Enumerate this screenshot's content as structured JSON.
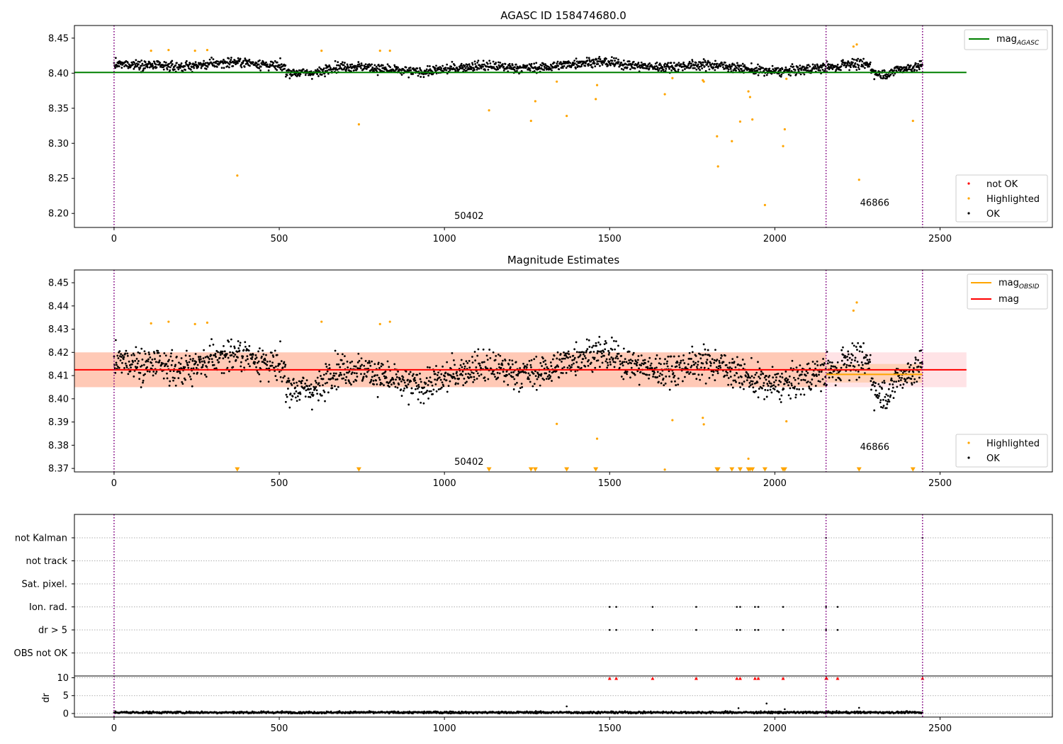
{
  "chart_data": [
    {
      "type": "scatter",
      "title": "AGASC ID 158474680.0",
      "xlim": [
        -120,
        2840
      ],
      "ylim": [
        8.18,
        8.468
      ],
      "xticks": [
        0,
        500,
        1000,
        1500,
        2000,
        2500
      ],
      "yticks": [
        8.2,
        8.25,
        8.3,
        8.35,
        8.4,
        8.45
      ],
      "ytick_labels": [
        "8.20",
        "8.25",
        "8.30",
        "8.35",
        "8.40",
        "8.45"
      ],
      "vlines": [
        0,
        2155,
        2447
      ],
      "annotations": [
        {
          "text": "50402",
          "x": 1030,
          "y": 8.192
        },
        {
          "text": "46866",
          "x": 2258,
          "y": 8.211
        }
      ],
      "line_legend": [
        {
          "label": "mag",
          "sub": "AGASC",
          "color": "#008000"
        }
      ],
      "marker_legend": [
        {
          "label": "not OK",
          "color": "#ff0000"
        },
        {
          "label": "Highlighted",
          "color": "#ffa500"
        },
        {
          "label": "OK",
          "color": "#000000"
        }
      ],
      "series": [
        {
          "name": "mag_AGASC",
          "type": "line",
          "color": "#008000",
          "x": [
            -120,
            2580
          ],
          "y": [
            8.401,
            8.401
          ]
        },
        {
          "name": "Highlighted",
          "color": "#ffa500",
          "points": [
            [
              112,
              8.432
            ],
            [
              165,
              8.433
            ],
            [
              245,
              8.432
            ],
            [
              282,
              8.433
            ],
            [
              373,
              8.254
            ],
            [
              628,
              8.432
            ],
            [
              741,
              8.327
            ],
            [
              805,
              8.432
            ],
            [
              835,
              8.432
            ],
            [
              1135,
              8.347
            ],
            [
              1262,
              8.332
            ],
            [
              1275,
              8.36
            ],
            [
              1340,
              8.388
            ],
            [
              1370,
              8.339
            ],
            [
              1458,
              8.363
            ],
            [
              1462,
              8.383
            ],
            [
              1667,
              8.37
            ],
            [
              1690,
              8.393
            ],
            [
              1782,
              8.39
            ],
            [
              1785,
              8.388
            ],
            [
              1825,
              8.31
            ],
            [
              1828,
              8.267
            ],
            [
              1870,
              8.303
            ],
            [
              1895,
              8.331
            ],
            [
              1920,
              8.374
            ],
            [
              1925,
              8.366
            ],
            [
              1932,
              8.334
            ],
            [
              1970,
              8.212
            ],
            [
              2025,
              8.296
            ],
            [
              2030,
              8.32
            ],
            [
              2035,
              8.392
            ],
            [
              2238,
              8.438
            ],
            [
              2248,
              8.441
            ],
            [
              2255,
              8.248
            ],
            [
              2418,
              8.332
            ]
          ]
        }
      ]
    },
    {
      "type": "scatter",
      "title": "Magnitude Estimates",
      "xlim": [
        -120,
        2840
      ],
      "ylim": [
        8.3685,
        8.4555
      ],
      "xticks": [
        0,
        500,
        1000,
        1500,
        2000,
        2500
      ],
      "yticks": [
        8.37,
        8.38,
        8.39,
        8.4,
        8.41,
        8.42,
        8.43,
        8.44,
        8.45
      ],
      "ytick_labels": [
        "8.37",
        "8.38",
        "8.39",
        "8.40",
        "8.41",
        "8.42",
        "8.43",
        "8.44",
        "8.45"
      ],
      "vlines": [
        0,
        2155,
        2447
      ],
      "annotations": [
        {
          "text": "50402",
          "x": 1030,
          "y": 8.3715
        },
        {
          "text": "46866",
          "x": 2258,
          "y": 8.378
        }
      ],
      "line_legend": [
        {
          "label": "mag",
          "sub": "OBSID",
          "color": "#ffa500"
        },
        {
          "label": "mag",
          "sub": "",
          "color": "#ff0000"
        }
      ],
      "marker_legend": [
        {
          "label": "Highlighted",
          "color": "#ffa500"
        },
        {
          "label": "OK",
          "color": "#000000"
        }
      ],
      "bands": [
        {
          "x": [
            -120,
            2580
          ],
          "y": [
            8.405,
            8.42
          ],
          "color": "#ffc0c8",
          "opacity": 0.45
        },
        {
          "x": [
            -120,
            2155
          ],
          "y": [
            8.405,
            8.42
          ],
          "color": "#ffa06a",
          "opacity": 0.38
        },
        {
          "x": [
            2155,
            2447
          ],
          "y": [
            8.407,
            8.415
          ],
          "color": "#ffb060",
          "opacity": 0.35
        }
      ],
      "series": [
        {
          "name": "mag_OBSID",
          "type": "line",
          "color": "#ffa500",
          "x": [
            2155,
            2447
          ],
          "y": [
            8.4105,
            8.4105
          ]
        },
        {
          "name": "mag",
          "type": "line",
          "color": "#ff0000",
          "x": [
            -120,
            2580
          ],
          "y": [
            8.4125,
            8.4125
          ]
        },
        {
          "name": "Highlighted",
          "color": "#ffa500",
          "points": [
            [
              112,
              8.4325
            ],
            [
              165,
              8.4332
            ],
            [
              245,
              8.4322
            ],
            [
              282,
              8.4328
            ],
            [
              628,
              8.4332
            ],
            [
              805,
              8.4322
            ],
            [
              835,
              8.4332
            ],
            [
              1340,
              8.3892
            ],
            [
              1462,
              8.3828
            ],
            [
              1690,
              8.3908
            ],
            [
              1782,
              8.3918
            ],
            [
              1785,
              8.389
            ],
            [
              1920,
              8.3742
            ],
            [
              2035,
              8.3903
            ],
            [
              2238,
              8.438
            ],
            [
              2248,
              8.4415
            ],
            [
              1667,
              8.3695
            ]
          ]
        },
        {
          "name": "Highlighted (below range)",
          "marker": "triangle-down",
          "color": "#ffa500",
          "x": [
            373,
            741,
            1135,
            1262,
            1275,
            1370,
            1458,
            1825,
            1828,
            1870,
            1895,
            1920,
            1925,
            1932,
            1970,
            2025,
            2030,
            2255,
            2418
          ]
        }
      ]
    },
    {
      "type": "scatter",
      "title": "",
      "xlim": [
        -120,
        2840
      ],
      "xticks": [
        0,
        500,
        1000,
        1500,
        2000,
        2500
      ],
      "categories": [
        "not Kalman",
        "not track",
        "Sat. pixel.",
        "Ion. rad.",
        "dr > 5",
        "OBS not OK"
      ],
      "vlines": [
        0,
        2155,
        2447
      ],
      "flag_points": {
        "Ion. rad.": [
          1500,
          1520,
          1630,
          1762,
          1885,
          1895,
          1940,
          1950,
          2025,
          2155,
          2190
        ],
        "dr > 5": [
          1500,
          1520,
          1630,
          1762,
          1885,
          1895,
          1940,
          1950,
          2025,
          2155,
          2190
        ],
        "not Kalman": [
          2155,
          2447
        ]
      }
    },
    {
      "type": "scatter",
      "ylabel": "dr",
      "xlim": [
        -120,
        2840
      ],
      "ylim": [
        -1,
        10.5
      ],
      "yticks": [
        0,
        5,
        10
      ],
      "ytick_labels": [
        "0",
        "5",
        "10"
      ],
      "xticks": [
        0,
        500,
        1000,
        1500,
        2000,
        2500
      ],
      "xtick_labels": [
        "0",
        "500",
        "1000",
        "1500",
        "2000",
        "2500"
      ],
      "vlines": [
        0,
        2155,
        2447
      ],
      "series": [
        {
          "name": "dr_outliers",
          "color": "#000000",
          "points": [
            [
              1370,
              2.0
            ],
            [
              1975,
              2.8
            ],
            [
              1890,
              1.5
            ],
            [
              2255,
              1.6
            ],
            [
              2030,
              1.2
            ]
          ]
        },
        {
          "name": "dr_capped",
          "marker": "triangle-up",
          "color": "#ff0000",
          "x": [
            1500,
            1520,
            1630,
            1762,
            1885,
            1895,
            1940,
            1950,
            2025,
            2155,
            2157,
            2190,
            2447
          ],
          "y": 9.8
        }
      ]
    }
  ]
}
